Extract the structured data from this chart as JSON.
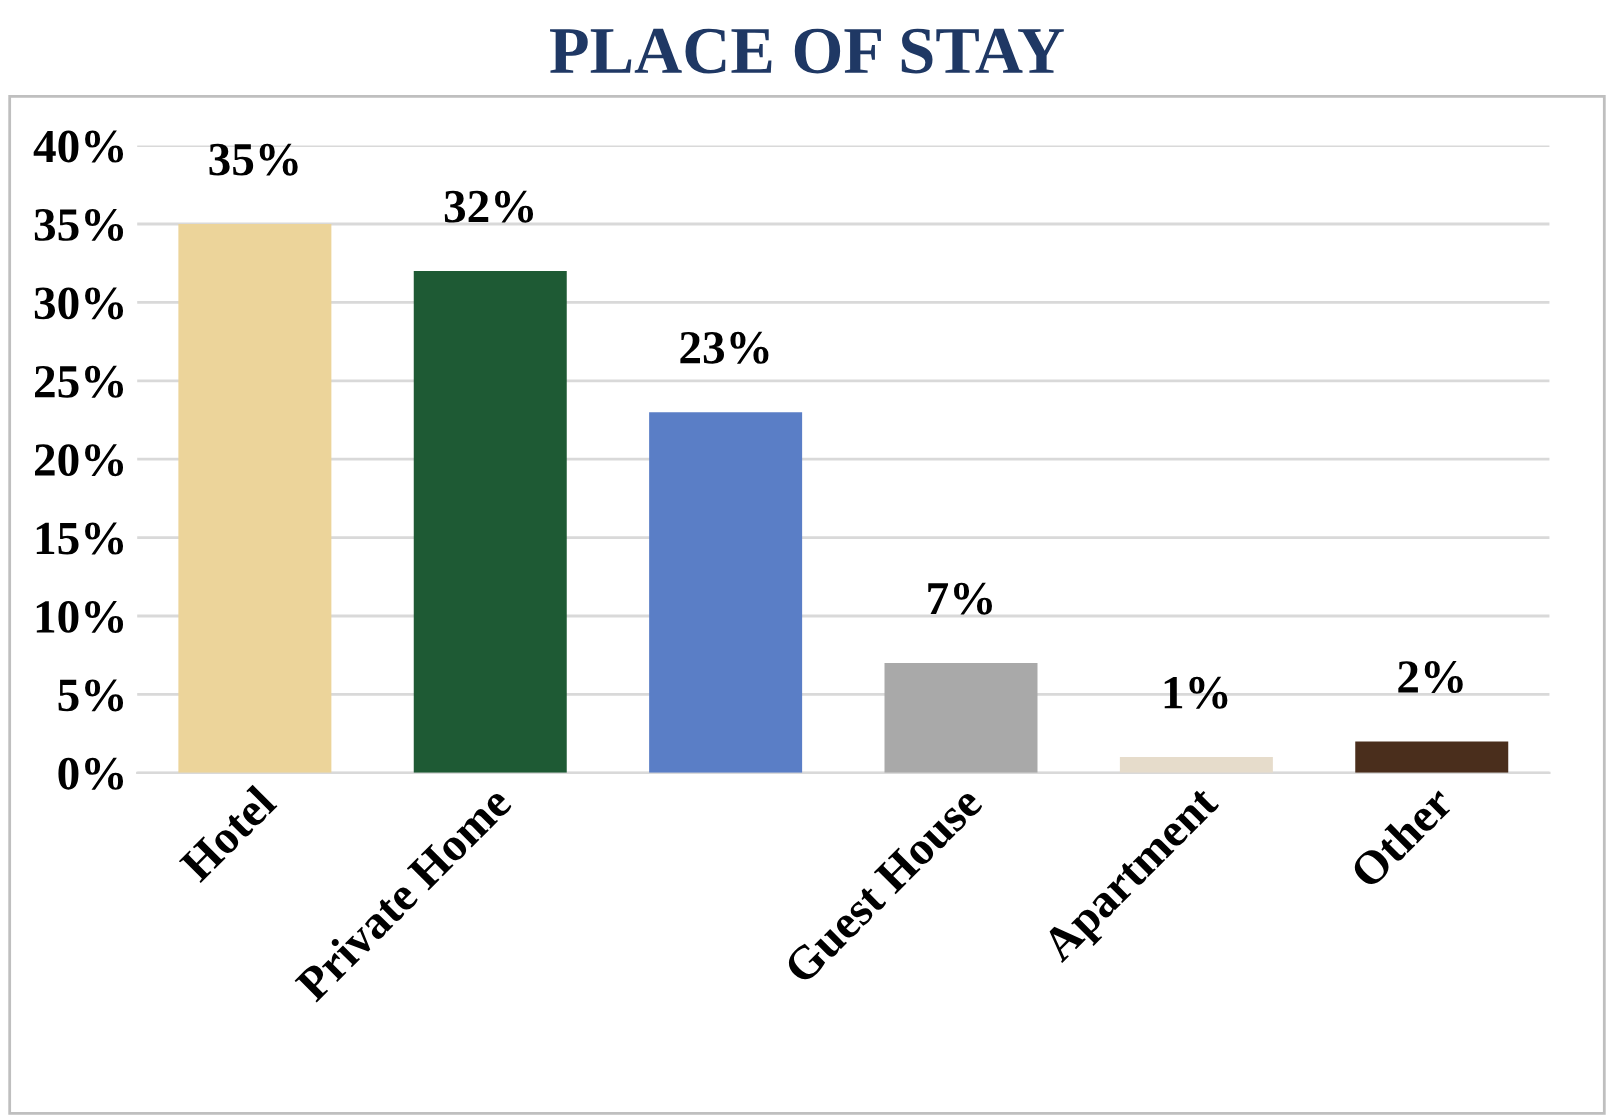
{
  "chart_data": {
    "type": "bar",
    "title": "PLACE OF STAY",
    "categories": [
      "Hotel",
      "Private Home",
      null,
      "Guest House",
      "Apartment",
      "Other"
    ],
    "values": [
      35,
      32,
      23,
      7,
      1,
      2
    ],
    "colors": [
      "#ecd49a",
      "#1e5a34",
      "#5a7ec6",
      "#a9a9a9",
      "#e6dccb",
      "#4a2e1c"
    ],
    "value_labels": [
      "35%",
      "32%",
      "23%",
      "7%",
      "1%",
      "2%"
    ],
    "ylim": [
      0,
      40
    ],
    "yticks": [
      {
        "value": 0,
        "label": "0%"
      },
      {
        "value": 5,
        "label": "5%"
      },
      {
        "value": 10,
        "label": "10%"
      },
      {
        "value": 15,
        "label": "15%"
      },
      {
        "value": 20,
        "label": "20%"
      },
      {
        "value": 25,
        "label": "25%"
      },
      {
        "value": 30,
        "label": "30%"
      },
      {
        "value": 35,
        "label": "35%"
      },
      {
        "value": 40,
        "label": "40%"
      }
    ],
    "grid": "y",
    "legend": false
  }
}
